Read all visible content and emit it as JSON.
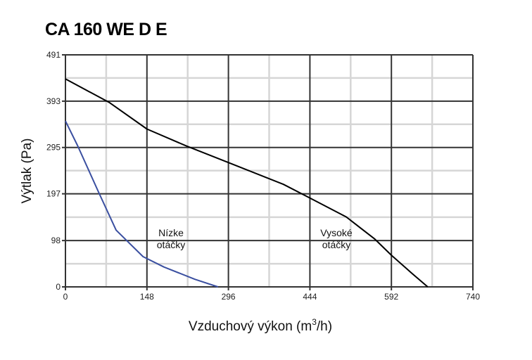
{
  "chart_data": {
    "type": "line",
    "title": "CA 160 WE D E",
    "xlabel": "Vzduchový výkon (m",
    "xlabel_sup": "3",
    "xlabel_end": "/h)",
    "ylabel": "Výtlak (Pa)",
    "xlim": [
      0,
      740
    ],
    "ylim": [
      0,
      491
    ],
    "xticks": [
      0,
      148,
      296,
      444,
      592,
      740
    ],
    "yticks": [
      0,
      98,
      197,
      295,
      393,
      491
    ],
    "xtick_labels": [
      "0",
      "148",
      "296",
      "444",
      "592",
      "740"
    ],
    "ytick_labels": [
      "0",
      "98",
      "197",
      "295",
      "393",
      "491"
    ],
    "minor_grid": true,
    "grid": true,
    "series": [
      {
        "name": "Vysoké otáčky",
        "label_lines": [
          "Vysoké",
          "otáčky"
        ],
        "color": "#000000",
        "x": [
          0,
          80,
          148,
          220,
          296,
          396,
          444,
          510,
          562,
          592,
          630,
          658
        ],
        "y": [
          440,
          390,
          334,
          298,
          263,
          217,
          188,
          148,
          101,
          67,
          28,
          0
        ]
      },
      {
        "name": "Nízke otáčky",
        "label_lines": [
          "Nízke",
          "otáčky"
        ],
        "color": "#3a4fa0",
        "x": [
          0,
          22,
          60,
          92,
          141,
          179,
          235,
          277
        ],
        "y": [
          351,
          299,
          201,
          120,
          64,
          42,
          16,
          0
        ]
      }
    ]
  }
}
